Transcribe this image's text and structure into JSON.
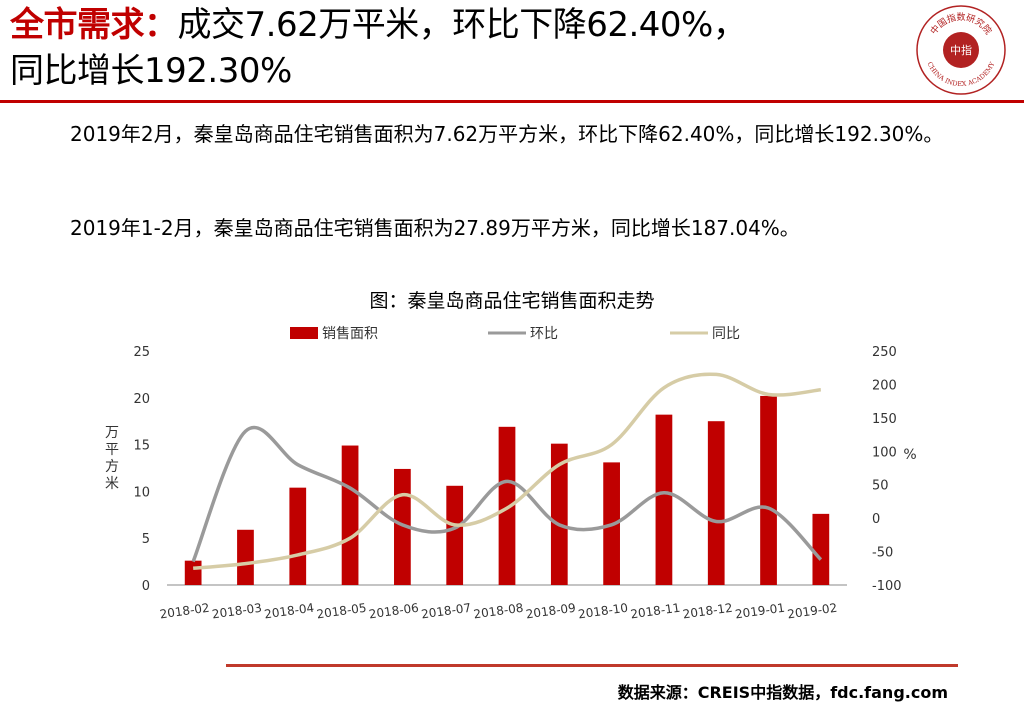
{
  "header": {
    "title_red": "全市需求：",
    "title_rest": "成交7.62万平米，环比下降62.40%，",
    "title_line2": "同比增长192.30%"
  },
  "logo": {
    "icon": "china-index-academy-seal",
    "top_text": "中国指数研究院",
    "center_text": "中指",
    "bottom_text": "CHINA INDEX ACADEMY",
    "color": "#b22222"
  },
  "paragraphs": {
    "p1": "2019年2月，秦皇岛商品住宅销售面积为7.62万平方米，环比下降62.40%，同比增长192.30%。",
    "p2": "2019年1-2月，秦皇岛商品住宅销售面积为27.89万平方米，同比增长187.04%。"
  },
  "chart_data": {
    "type": "bar",
    "title": "图：秦皇岛商品住宅销售面积走势",
    "categories": [
      "2018-02",
      "2018-03",
      "2018-04",
      "2018-05",
      "2018-06",
      "2018-07",
      "2018-08",
      "2018-09",
      "2018-10",
      "2018-11",
      "2018-12",
      "2019-01",
      "2019-02"
    ],
    "ylabel": "万平方米",
    "y2label": "%",
    "ylim": [
      0,
      25
    ],
    "y2lim": [
      -100,
      250
    ],
    "yticks": [
      0,
      5,
      10,
      15,
      20,
      25
    ],
    "y2ticks": [
      -100,
      -50,
      0,
      50,
      100,
      150,
      200,
      250
    ],
    "legend_position": "top",
    "grid": false,
    "series": [
      {
        "name": "销售面积",
        "type": "bar",
        "axis": "left",
        "color": "#c00000",
        "values": [
          2.6,
          5.9,
          10.4,
          14.9,
          12.4,
          10.6,
          16.9,
          15.1,
          13.1,
          18.2,
          17.5,
          20.2,
          7.6
        ]
      },
      {
        "name": "环比",
        "type": "line",
        "axis": "right",
        "color": "#9a9a9a",
        "values": [
          -65,
          130,
          80,
          45,
          -10,
          -15,
          55,
          -10,
          -10,
          38,
          -5,
          15,
          -62
        ]
      },
      {
        "name": "同比",
        "type": "line",
        "axis": "right",
        "color": "#d6cca6",
        "values": [
          -75,
          -68,
          -55,
          -30,
          35,
          -10,
          15,
          80,
          110,
          195,
          215,
          185,
          192
        ]
      }
    ]
  },
  "source": "数据来源：CREIS中指数据，fdc.fang.com"
}
